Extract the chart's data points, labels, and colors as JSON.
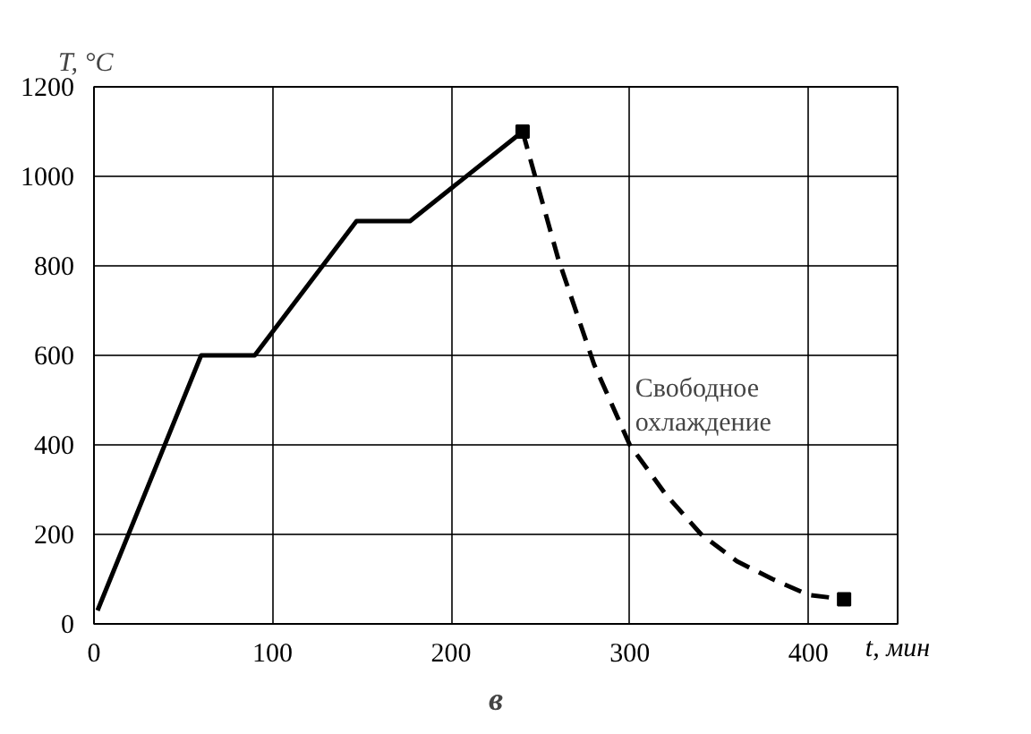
{
  "chart_data": {
    "type": "line",
    "xlabel": "t, мин",
    "ylabel": "T, °C",
    "annotations": [
      "в",
      {
        "text": "Свободное охлаждение",
        "x": 300,
        "y": 400
      }
    ],
    "xlim": [
      0,
      450
    ],
    "ylim": [
      0,
      1200
    ],
    "xticks": [
      0,
      100,
      200,
      300,
      400
    ],
    "yticks": [
      0,
      200,
      400,
      600,
      800,
      1000,
      1200
    ],
    "grid": true,
    "series": [
      {
        "color": "#000000",
        "line_style": "solid",
        "marker": "none",
        "x": [
          2,
          60,
          90,
          147,
          177,
          240
        ],
        "values": [
          30,
          600,
          600,
          900,
          900,
          1100
        ]
      },
      {
        "color": "#000000",
        "line_style": "dashed",
        "marker": "none",
        "x": [
          240,
          260,
          280,
          300,
          320,
          340,
          360,
          380,
          400,
          420
        ],
        "values": [
          1100,
          815,
          580,
          400,
          290,
          200,
          140,
          100,
          65,
          55
        ]
      },
      {
        "type": "scatter",
        "color": "#000000",
        "marker": "square",
        "x": [
          240,
          420
        ],
        "values": [
          1100,
          55
        ]
      }
    ]
  }
}
